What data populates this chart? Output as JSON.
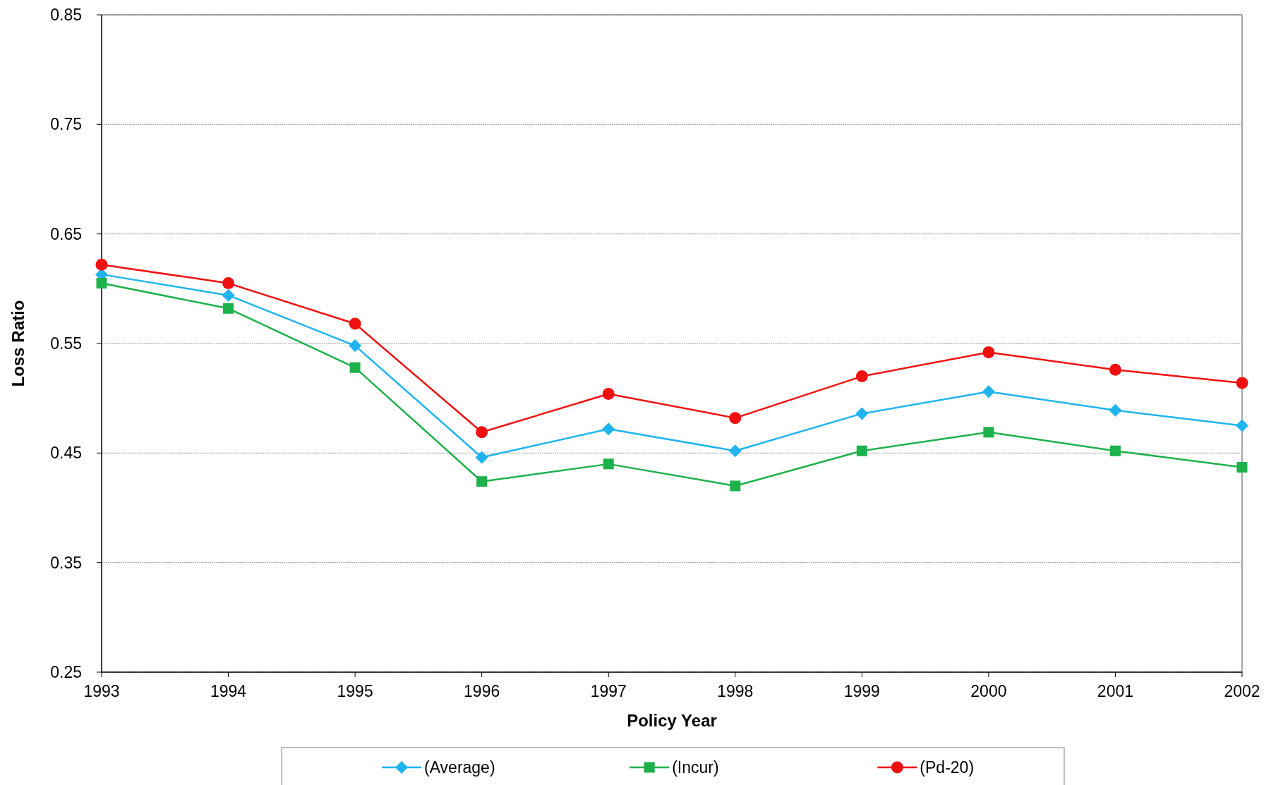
{
  "chart_data": {
    "type": "line",
    "xlabel": "Policy Year",
    "ylabel": "Loss Ratio",
    "x": [
      1993,
      1994,
      1995,
      1996,
      1997,
      1998,
      1999,
      2000,
      2001,
      2002
    ],
    "xlim": [
      1993,
      2002
    ],
    "xticks": [
      1993,
      1994,
      1995,
      1996,
      1997,
      1998,
      1999,
      2000,
      2001,
      2002
    ],
    "ylim": [
      0.25,
      0.85
    ],
    "yticks": [
      0.25,
      0.35,
      0.45,
      0.55,
      0.65,
      0.75,
      0.85
    ],
    "grid": "y",
    "legend": "bottom",
    "series": [
      {
        "name": "(Average)",
        "color": "#1fb4f0",
        "marker": "diamond",
        "values": [
          0.613,
          0.594,
          0.548,
          0.446,
          0.472,
          0.452,
          0.486,
          0.506,
          0.489,
          0.475
        ]
      },
      {
        "name": "(Incur)",
        "color": "#1db14b",
        "marker": "square",
        "values": [
          0.605,
          0.582,
          0.528,
          0.424,
          0.44,
          0.42,
          0.452,
          0.469,
          0.452,
          0.437
        ]
      },
      {
        "name": "(Pd-20)",
        "color": "#f01010",
        "marker": "circle",
        "values": [
          0.622,
          0.605,
          0.568,
          0.469,
          0.504,
          0.482,
          0.52,
          0.542,
          0.526,
          0.514
        ]
      }
    ]
  }
}
